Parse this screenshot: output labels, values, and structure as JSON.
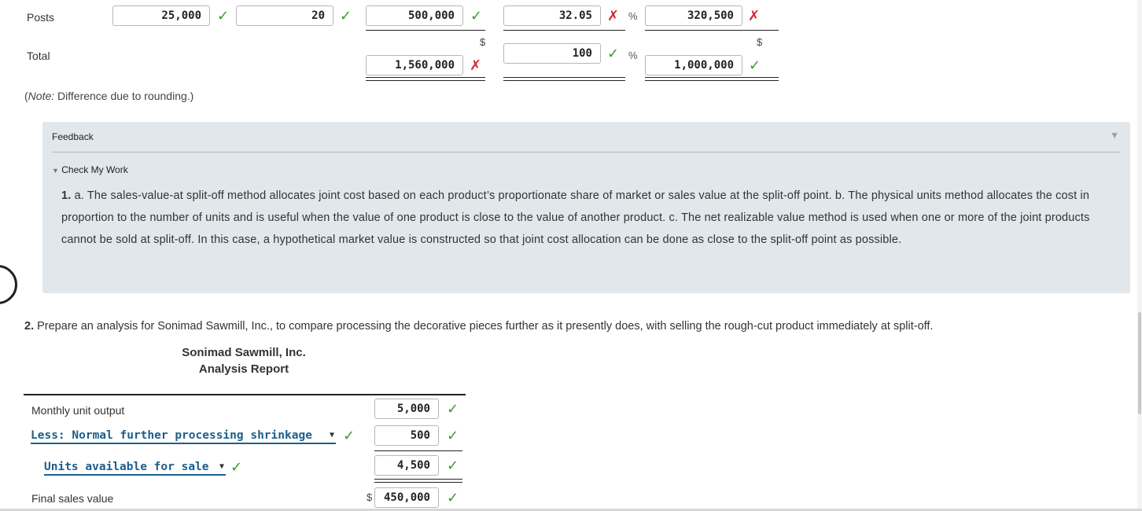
{
  "top_table": {
    "posts_label": "Posts",
    "total_label": "Total",
    "posts_units": "25,000",
    "posts_price": "20",
    "posts_value": "500,000",
    "posts_pct": "32.05",
    "posts_alloc": "320,500",
    "total_dollar": "$",
    "total_value": "1,560,000",
    "total_pct": "100",
    "total_dollar2": "$",
    "total_alloc": "1,000,000",
    "pct_symbol": "%",
    "note_prefix": "(",
    "note_italic": "Note:",
    "note_rest": " Difference due to rounding.)"
  },
  "feedback": {
    "title": "Feedback",
    "check_title": "Check My Work",
    "number": "1.",
    "text": " a. The sales-value-at split-off method allocates joint cost based on each product’s proportionate share of market or sales value at the split-off point. b. The physical units method allocates the cost in proportion to the number of units and is useful when the value of one product is close to the value of another product. c. The net realizable value method is used when one or more of the joint products cannot be sold at split-off. In this case, a hypothetical market value is constructed so that joint cost allocation can be done as close to the split-off point as possible."
  },
  "question": {
    "number": "2.",
    "text": " Prepare an analysis for Sonimad Sawmill, Inc., to compare processing the decorative pieces further as it presently does, with selling the rough-cut product immediately at split-off."
  },
  "report": {
    "company": "Sonimad Sawmill, Inc.",
    "title": "Analysis Report",
    "rows": {
      "monthly_label": "Monthly unit output",
      "monthly_value": "5,000",
      "less_select": "Less: Normal further processing shrinkage",
      "less_value": "500",
      "units_select": "Units available for sale",
      "units_value": "4,500",
      "final_label": "Final sales value",
      "final_dollar": "$",
      "final_value": "450,000"
    }
  },
  "icons": {
    "check": "check-icon",
    "cross": "cross-icon"
  },
  "colors": {
    "correct": "#3a9a2e",
    "incorrect": "#d9262d",
    "select_link": "#1b5e8c",
    "feedback_bg": "#e1e7ea"
  }
}
